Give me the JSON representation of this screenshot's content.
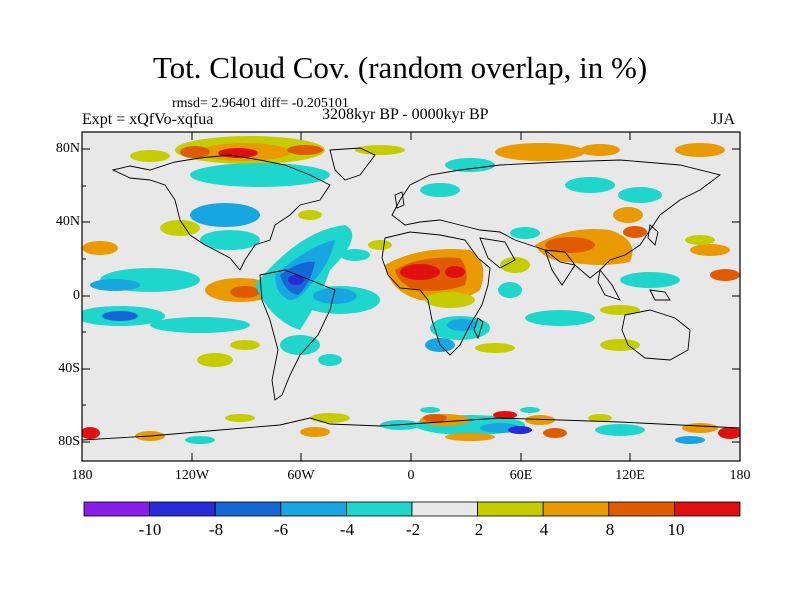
{
  "title": "Tot. Cloud Cov. (random overlap, in %)",
  "stats": "rmsd= 2.96401 diff= -0.205101",
  "experiment": "Expt = xQfVo-xqfua",
  "period": "3208kyr BP - 0000kyr BP",
  "season": "JJA",
  "y_ticks": [
    "80N",
    "40N",
    "0",
    "40S",
    "80S"
  ],
  "x_ticks": [
    "180",
    "120W",
    "60W",
    "0",
    "60E",
    "120E",
    "180"
  ],
  "colorbar": {
    "labels": [
      "-10",
      "-8",
      "-6",
      "-4",
      "-2",
      "2",
      "4",
      "8",
      "10"
    ],
    "colors": [
      "#8a1ee8",
      "#2a2bd8",
      "#1667d6",
      "#17a6e2",
      "#1fd6cc",
      "#e8e8e8",
      "#c5cc00",
      "#e89a00",
      "#e05a00",
      "#e01010"
    ]
  },
  "palette": {
    "neg_strong": "#2a2bd8",
    "neg_mid": "#1667d6",
    "neg_light": "#17a6e2",
    "neg_weak": "#1fd6cc",
    "neutral": "#e8e8e8",
    "pos_weak": "#c5cc00",
    "pos_mid": "#e89a00",
    "pos_strong": "#e05a00",
    "pos_max": "#e01010",
    "extreme_neg": "#8a1ee8"
  }
}
